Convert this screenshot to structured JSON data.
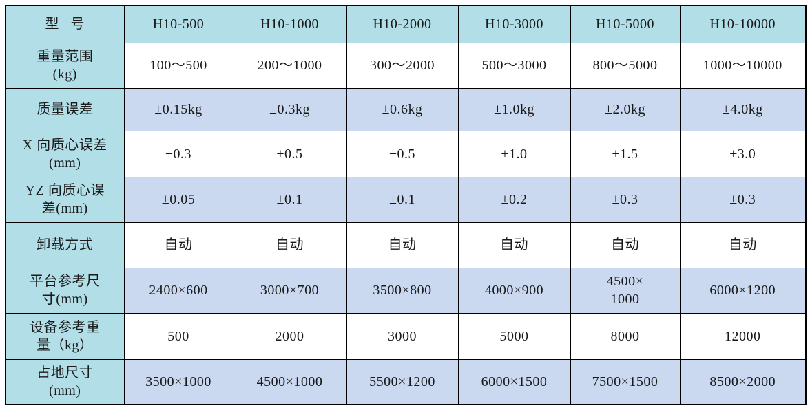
{
  "colors": {
    "header_bg": "#b2dee8",
    "label_col_bg": "#b2dee8",
    "alt_row_bg": "#cad8f0",
    "row_bg": "#ffffff",
    "border": "#000000",
    "text": "#1a1a1a"
  },
  "table": {
    "rows": [
      {
        "label": "型   号",
        "values": [
          "H10-500",
          "H10-1000",
          "H10-2000",
          "H10-3000",
          "H10-5000",
          "H10-10000"
        ]
      },
      {
        "label": "重量范围\n(kg)",
        "values": [
          "100～500",
          "200～1000",
          "300～2000",
          "500～3000",
          "800～5000",
          "1000～10000"
        ]
      },
      {
        "label": "质量误差",
        "values": [
          "±0.15kg",
          "±0.3kg",
          "±0.6kg",
          "±1.0kg",
          "±2.0kg",
          "±4.0kg"
        ]
      },
      {
        "label": "X 向质心误差\n(mm)",
        "values": [
          "±0.3",
          "±0.5",
          "±0.5",
          "±1.0",
          "±1.5",
          "±3.0"
        ]
      },
      {
        "label": "YZ 向质心误\n差(mm)",
        "values": [
          "±0.05",
          "±0.1",
          "±0.1",
          "±0.2",
          "±0.3",
          "±0.3"
        ]
      },
      {
        "label": "卸载方式",
        "values": [
          "自动",
          "自动",
          "自动",
          "自动",
          "自动",
          "自动"
        ]
      },
      {
        "label": "平台参考尺\n寸(mm)",
        "values": [
          "2400×600",
          "3000×700",
          "3500×800",
          "4000×900",
          "4500×\n1000",
          "6000×1200"
        ]
      },
      {
        "label": "设备参考重\n量（kg）",
        "values": [
          "500",
          "2000",
          "3000",
          "5000",
          "8000",
          "12000"
        ]
      },
      {
        "label": "占地尺寸\n(mm)",
        "values": [
          "3500×1000",
          "4500×1000",
          "5500×1200",
          "6000×1500",
          "7500×1500",
          "8500×2000"
        ]
      }
    ]
  },
  "chart_data": {
    "type": "table",
    "title": "",
    "columns": [
      "型 号",
      "H10-500",
      "H10-1000",
      "H10-2000",
      "H10-3000",
      "H10-5000",
      "H10-10000"
    ],
    "rows": [
      [
        "重量范围(kg)",
        "100～500",
        "200～1000",
        "300～2000",
        "500～3000",
        "800～5000",
        "1000～10000"
      ],
      [
        "质量误差",
        "±0.15kg",
        "±0.3kg",
        "±0.6kg",
        "±1.0kg",
        "±2.0kg",
        "±4.0kg"
      ],
      [
        "X 向质心误差(mm)",
        "±0.3",
        "±0.5",
        "±0.5",
        "±1.0",
        "±1.5",
        "±3.0"
      ],
      [
        "YZ 向质心误差(mm)",
        "±0.05",
        "±0.1",
        "±0.1",
        "±0.2",
        "±0.3",
        "±0.3"
      ],
      [
        "卸载方式",
        "自动",
        "自动",
        "自动",
        "自动",
        "自动",
        "自动"
      ],
      [
        "平台参考尺寸(mm)",
        "2400×600",
        "3000×700",
        "3500×800",
        "4000×900",
        "4500×1000",
        "6000×1200"
      ],
      [
        "设备参考重量（kg）",
        "500",
        "2000",
        "3000",
        "5000",
        "8000",
        "12000"
      ],
      [
        "占地尺寸(mm)",
        "3500×1000",
        "4500×1000",
        "5500×1200",
        "6000×1500",
        "7500×1500",
        "8500×2000"
      ]
    ],
    "layout": {
      "header_row_highlighted": true,
      "label_column_highlighted": true,
      "alternating_data_rows": true
    }
  }
}
